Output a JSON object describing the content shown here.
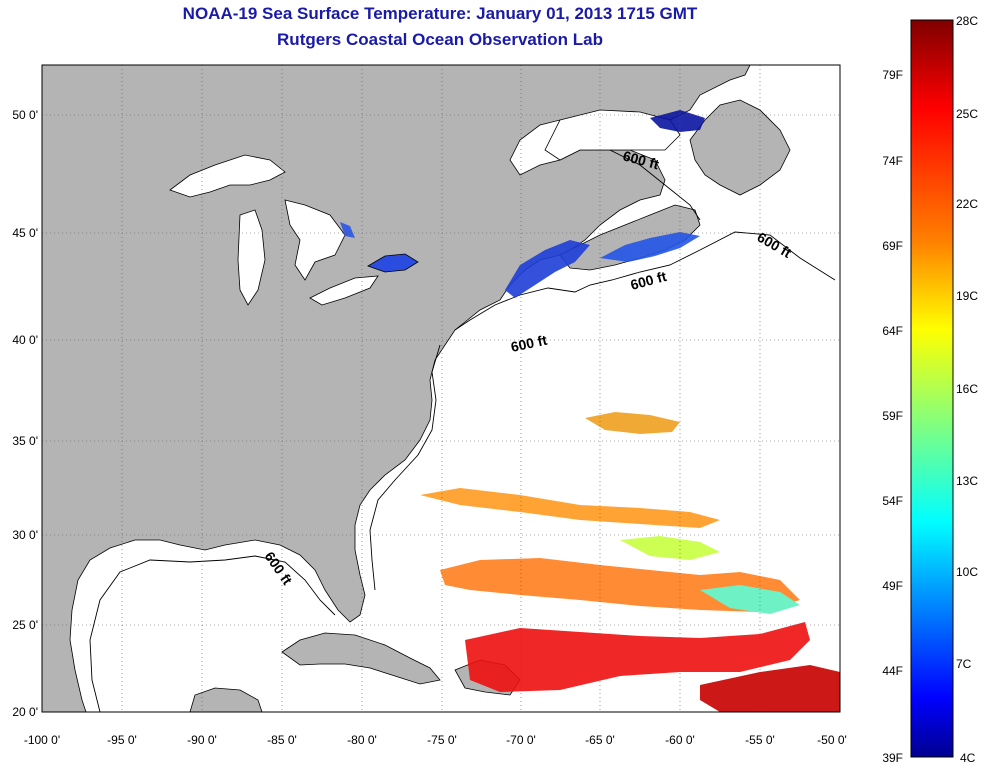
{
  "title": "NOAA-19 Sea Surface Temperature:  January 01, 2013 1715 GMT",
  "subtitle": "Rutgers Coastal Ocean Observation Lab",
  "map": {
    "lat_ticks": [
      "20 0'",
      "25 0'",
      "30 0'",
      "35 0'",
      "40 0'",
      "45 0'",
      "50 0'"
    ],
    "lon_ticks": [
      "-100 0'",
      "-95 0'",
      "-90 0'",
      "-85 0'",
      "-80 0'",
      "-75 0'",
      "-70 0'",
      "-65 0'",
      "-60 0'",
      "-55 0'",
      "-50 0'"
    ],
    "isobath_labels": [
      "600 ft",
      "600 ft",
      "600 ft",
      "600 ft",
      "600 ft"
    ],
    "colors": {
      "land": "#b4b4b4",
      "water": "#ffffff",
      "gridline": "#000000"
    }
  },
  "colorbar": {
    "celsius": [
      "28C",
      "25C",
      "22C",
      "19C",
      "16C",
      "13C",
      "10C",
      "7C",
      "4C"
    ],
    "fahrenheit": [
      "79F",
      "74F",
      "69F",
      "64F",
      "59F",
      "54F",
      "49F",
      "44F",
      "39F"
    ],
    "colors_top_to_bottom": [
      "#7f0000",
      "#ff0000",
      "#ff8000",
      "#ffff00",
      "#80ff80",
      "#00ffff",
      "#0080ff",
      "#0000ff",
      "#00008f"
    ]
  }
}
